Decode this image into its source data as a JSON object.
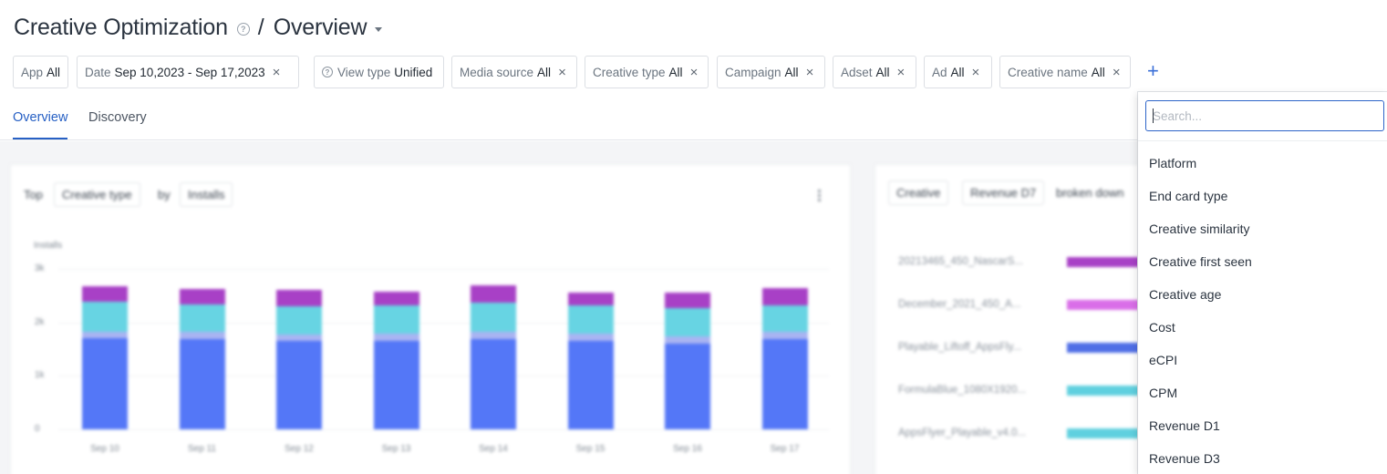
{
  "header": {
    "title": "Creative Optimization",
    "separator": "/",
    "page": "Overview",
    "help_icon": "question-circle-icon",
    "caret_icon": "chevron-down-icon"
  },
  "filters": [
    {
      "label": "App",
      "value": "All",
      "removable": false
    },
    {
      "label": "Date",
      "value": "Sep 10,2023 - Sep 17,2023",
      "removable": true
    },
    {
      "label": "View type",
      "value": "Unified",
      "removable": false,
      "icon": "eye-icon"
    },
    {
      "label": "Media source",
      "value": "All",
      "removable": true
    },
    {
      "label": "Creative type",
      "value": "All",
      "removable": true
    },
    {
      "label": "Campaign",
      "value": "All",
      "removable": true
    },
    {
      "label": "Adset",
      "value": "All",
      "removable": true
    },
    {
      "label": "Ad",
      "value": "All",
      "removable": true
    },
    {
      "label": "Creative name",
      "value": "All",
      "removable": true
    }
  ],
  "add_filter_icon": "+",
  "tabs": [
    {
      "label": "Overview",
      "active": true
    },
    {
      "label": "Discovery",
      "active": false
    }
  ],
  "left_card": {
    "prefix": "Top",
    "dimension": "Creative type",
    "by": "by",
    "metric": "Installs",
    "ylabel": "Installs",
    "chart_data": {
      "type": "bar",
      "stacked": true,
      "categories": [
        "Sep 10",
        "Sep 11",
        "Sep 12",
        "Sep 13",
        "Sep 14",
        "Sep 15",
        "Sep 16",
        "Sep 17"
      ],
      "yticks": [
        "0",
        "1k",
        "2k",
        "3k"
      ],
      "ylim": [
        0,
        3000
      ],
      "series": [
        {
          "color": "#5477f7",
          "values": [
            1700,
            1690,
            1650,
            1660,
            1690,
            1660,
            1610,
            1690
          ]
        },
        {
          "color": "#a9b4f2",
          "values": [
            130,
            130,
            130,
            130,
            130,
            130,
            130,
            130
          ]
        },
        {
          "color": "#67d4e3",
          "values": [
            550,
            520,
            520,
            520,
            550,
            520,
            520,
            500
          ]
        },
        {
          "color": "#a840c6",
          "values": [
            300,
            280,
            300,
            270,
            330,
            250,
            300,
            320
          ]
        }
      ]
    }
  },
  "right_card": {
    "dimension": "Creative",
    "metric": "Revenue D7",
    "suffix": "broken down",
    "rows": [
      {
        "name": "20213465_450_NascarS...",
        "color": "#a840c6"
      },
      {
        "name": "December_2021_450_A...",
        "color": "#d96ee8"
      },
      {
        "name": "Playable_Liftoff_AppsFly...",
        "color": "#4f6ee6"
      },
      {
        "name": "FormulaBlue_1080X1920...",
        "color": "#5fd0df"
      },
      {
        "name": "AppsFlyer_Playable_v4.0...",
        "color": "#5fd0df"
      }
    ]
  },
  "dropdown": {
    "search_placeholder": "Search...",
    "options": [
      "Platform",
      "End card type",
      "Creative similarity",
      "Creative first seen",
      "Creative age",
      "Cost",
      "eCPI",
      "CPM",
      "Revenue D1",
      "Revenue D3"
    ]
  }
}
